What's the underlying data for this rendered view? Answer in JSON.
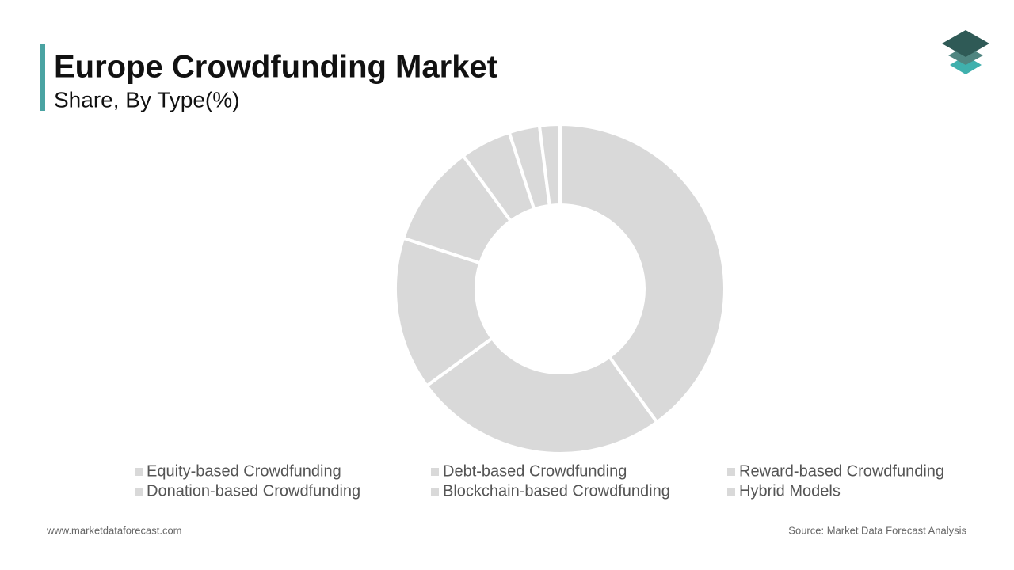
{
  "chart_data": {
    "type": "pie",
    "title": "Europe Crowdfunding Market",
    "subtitle": "Share, By Type(%)",
    "categories": [
      "Equity-based Crowdfunding",
      "Debt-based Crowdfunding",
      "Reward-based Crowdfunding",
      "Donation-based Crowdfunding",
      "Blockchain-based Crowdfunding",
      "Hybrid Models",
      null
    ],
    "values": [
      40,
      25,
      15,
      10,
      5,
      3,
      2
    ],
    "color": "#d9d9d9",
    "donut": true
  },
  "footer": {
    "website": "www.marketdataforecast.com",
    "source": "Source: Market Data Forecast Analysis"
  }
}
